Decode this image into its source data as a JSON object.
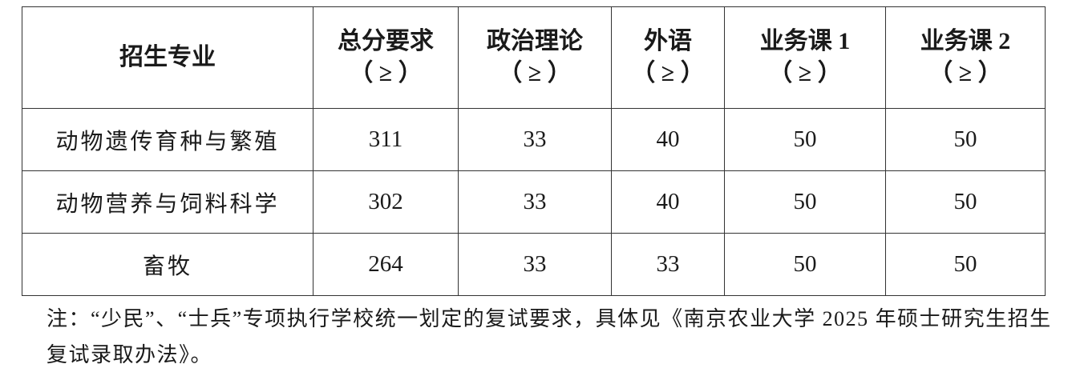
{
  "table": {
    "headers": [
      {
        "title": "招生专业",
        "sub": ""
      },
      {
        "title": "总分要求",
        "sub": "（ ≥ ）"
      },
      {
        "title": "政治理论",
        "sub": "（ ≥ ）"
      },
      {
        "title": "外语",
        "sub": "（ ≥ ）"
      },
      {
        "title": "业务课 1",
        "sub": "（ ≥ ）"
      },
      {
        "title": "业务课 2",
        "sub": "（ ≥ ）"
      }
    ],
    "rows": [
      [
        "动物遗传育种与繁殖",
        "311",
        "33",
        "40",
        "50",
        "50"
      ],
      [
        "动物营养与饲料科学",
        "302",
        "33",
        "40",
        "50",
        "50"
      ],
      [
        "畜牧",
        "264",
        "33",
        "33",
        "50",
        "50"
      ]
    ]
  },
  "note": "注：“少民”、“士兵”专项执行学校统一划定的复试要求，具体见《南京农业大学 2025 年硕士研究生招生复试录取办法》。"
}
